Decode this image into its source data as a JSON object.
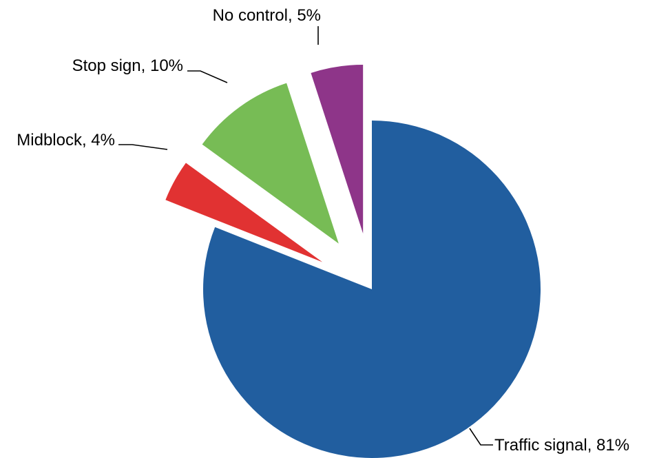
{
  "chart_data": {
    "type": "pie",
    "title": "",
    "legend": "none",
    "exploded": true,
    "slices": [
      {
        "key": "traffic-signal",
        "name": "Traffic signal",
        "value": 81,
        "color": "#215E9F",
        "label": "Traffic signal, 81%"
      },
      {
        "key": "midblock",
        "name": "Midblock",
        "value": 4,
        "color": "#E13232",
        "label": "Midblock, 4%"
      },
      {
        "key": "stop-sign",
        "name": "Stop sign",
        "value": 10,
        "color": "#77BC55",
        "label": "Stop sign, 10%"
      },
      {
        "key": "no-control",
        "name": "No control",
        "value": 5,
        "color": "#8E3589",
        "label": "No control, 5%"
      }
    ]
  }
}
